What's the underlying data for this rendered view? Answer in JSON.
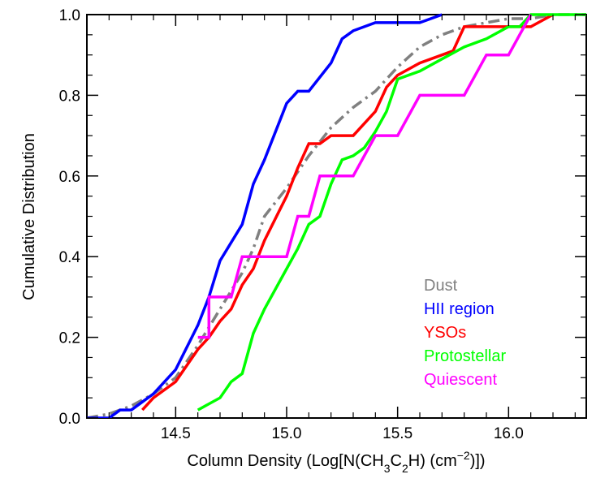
{
  "chart_data": {
    "type": "line",
    "title": "",
    "xlabel": "Column Density (Log[N(CH3C2H) (cm−2)])",
    "xlabel_parts": {
      "prefix": "Column Density (Log[N(CH",
      "sub1": "3",
      "mid": "C",
      "sub2": "2",
      "mid2": "H) (cm",
      "sup": "−2",
      "suffix": ")])"
    },
    "ylabel": "Cumulative Distribution",
    "xlim": [
      14.1,
      16.35
    ],
    "ylim": [
      0.0,
      1.0
    ],
    "xticks": [
      14.5,
      15.0,
      15.5,
      16.0
    ],
    "xtick_labels": [
      "14.5",
      "15.0",
      "15.5",
      "16.0"
    ],
    "yticks": [
      0.0,
      0.2,
      0.4,
      0.6,
      0.8,
      1.0
    ],
    "ytick_labels": [
      "0.0",
      "0.2",
      "0.4",
      "0.6",
      "0.8",
      "1.0"
    ],
    "legend_position": "lower-right",
    "series": [
      {
        "name": "Dust",
        "color": "#808080",
        "style": "dash-dot",
        "x": [
          14.1,
          14.2,
          14.3,
          14.4,
          14.5,
          14.6,
          14.7,
          14.8,
          14.85,
          14.9,
          15.0,
          15.1,
          15.2,
          15.3,
          15.4,
          15.5,
          15.6,
          15.7,
          15.8,
          15.9,
          16.0,
          16.1,
          16.2,
          16.35
        ],
        "values": [
          0.0,
          0.01,
          0.03,
          0.06,
          0.1,
          0.18,
          0.27,
          0.36,
          0.42,
          0.5,
          0.57,
          0.65,
          0.72,
          0.77,
          0.81,
          0.87,
          0.92,
          0.95,
          0.97,
          0.98,
          0.99,
          0.99,
          1.0,
          1.0
        ]
      },
      {
        "name": "HII region",
        "color": "#0000ff",
        "style": "solid",
        "x": [
          14.1,
          14.2,
          14.25,
          14.3,
          14.4,
          14.5,
          14.6,
          14.65,
          14.7,
          14.8,
          14.85,
          14.9,
          15.0,
          15.05,
          15.1,
          15.2,
          15.25,
          15.3,
          15.4,
          15.5,
          15.6,
          15.7
        ],
        "values": [
          0.0,
          0.0,
          0.02,
          0.02,
          0.06,
          0.12,
          0.23,
          0.3,
          0.39,
          0.48,
          0.58,
          0.64,
          0.78,
          0.81,
          0.81,
          0.88,
          0.94,
          0.96,
          0.98,
          0.98,
          0.98,
          1.0
        ]
      },
      {
        "name": "YSOs",
        "color": "#ff0000",
        "style": "solid",
        "x": [
          14.35,
          14.4,
          14.5,
          14.6,
          14.65,
          14.7,
          14.75,
          14.8,
          14.85,
          14.9,
          15.0,
          15.05,
          15.1,
          15.15,
          15.2,
          15.3,
          15.4,
          15.45,
          15.5,
          15.6,
          15.7,
          15.75,
          15.8,
          15.9,
          16.0,
          16.1,
          16.2
        ],
        "values": [
          0.02,
          0.05,
          0.09,
          0.17,
          0.2,
          0.24,
          0.27,
          0.33,
          0.37,
          0.44,
          0.55,
          0.62,
          0.68,
          0.68,
          0.7,
          0.7,
          0.76,
          0.82,
          0.85,
          0.88,
          0.9,
          0.91,
          0.97,
          0.97,
          0.97,
          0.97,
          1.0
        ]
      },
      {
        "name": "Protostellar",
        "color": "#00ff00",
        "style": "solid",
        "x": [
          14.6,
          14.7,
          14.75,
          14.8,
          14.85,
          14.9,
          15.0,
          15.05,
          15.1,
          15.15,
          15.2,
          15.25,
          15.3,
          15.35,
          15.4,
          15.45,
          15.5,
          15.6,
          15.7,
          15.8,
          15.9,
          16.0,
          16.05,
          16.1,
          16.3,
          16.35
        ],
        "values": [
          0.02,
          0.05,
          0.09,
          0.11,
          0.21,
          0.27,
          0.37,
          0.42,
          0.48,
          0.5,
          0.58,
          0.64,
          0.65,
          0.67,
          0.71,
          0.76,
          0.84,
          0.86,
          0.89,
          0.92,
          0.94,
          0.97,
          0.97,
          1.0,
          1.0,
          1.0
        ]
      },
      {
        "name": "Quiescent",
        "color": "#ff00ff",
        "style": "steps",
        "x": [
          14.6,
          14.65,
          14.65,
          14.75,
          14.75,
          14.8,
          15.0,
          15.05,
          15.1,
          15.1,
          15.15,
          15.2,
          15.3,
          15.4,
          15.5,
          15.6,
          15.7,
          15.8,
          15.9,
          16.0,
          16.0,
          16.1
        ],
        "values": [
          0.2,
          0.2,
          0.3,
          0.3,
          0.3,
          0.4,
          0.4,
          0.5,
          0.5,
          0.5,
          0.6,
          0.6,
          0.6,
          0.7,
          0.7,
          0.8,
          0.8,
          0.8,
          0.9,
          0.9,
          0.9,
          1.0
        ]
      }
    ]
  }
}
